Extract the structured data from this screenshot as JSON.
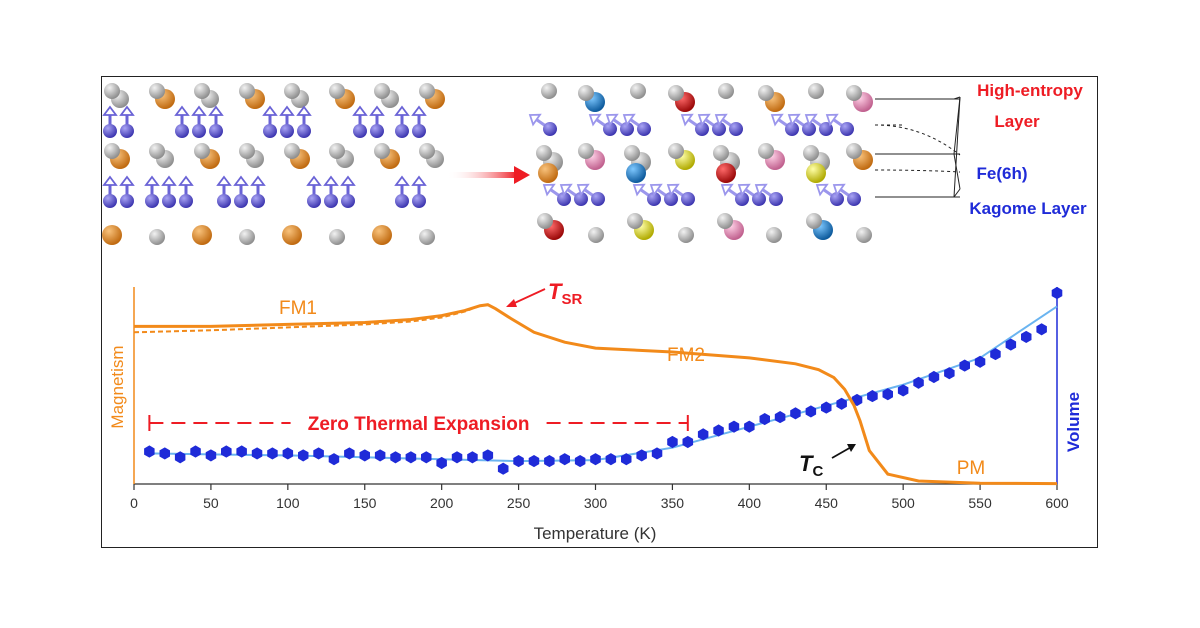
{
  "structure_labels": {
    "high_entropy_line1": "High-entropy",
    "high_entropy_line2": "Layer",
    "fe6h": "Fe(6h)",
    "kagome": "Kagome Layer"
  },
  "colors": {
    "magnetism": "#f28a1a",
    "volume": "#1f2bd8",
    "volume_fit": "#6ab4f0",
    "annotation_red": "#ee1c24",
    "fe_atom": "#6a63d6",
    "a_site_orange": "#e08a2a",
    "grey_atom": "#b8b8b8",
    "atom_red": "#d01a1a",
    "atom_blue": "#1d7fd0",
    "atom_pink": "#e58ab8",
    "atom_yellow": "#e6e01c",
    "label_red": "#ee1c24",
    "label_blue": "#1f2bd8"
  },
  "chart_data": {
    "type": "line",
    "xlabel": "Temperature (K)",
    "ylabel_left": "Magnetism",
    "ylabel_right": "Volume",
    "xlim": [
      0,
      600
    ],
    "xticks": [
      "0",
      "50",
      "100",
      "150",
      "200",
      "250",
      "300",
      "350",
      "400",
      "450",
      "500",
      "550",
      "600"
    ],
    "annotations": {
      "fm1": "FM1",
      "fm2": "FM2",
      "pm": "PM",
      "tsr_main": "T",
      "tsr_sub": "SR",
      "tc_main": "T",
      "tc_sub": "C",
      "zte": "Zero Thermal Expansion"
    },
    "zte_range": [
      10,
      360
    ],
    "series": [
      {
        "key": "magnetism",
        "axis": "left",
        "x": [
          0,
          50,
          100,
          150,
          180,
          200,
          215,
          225,
          230,
          235,
          245,
          260,
          280,
          300,
          350,
          400,
          430,
          445,
          455,
          462,
          468,
          472,
          478,
          490,
          510,
          550,
          600
        ],
        "values": [
          0.8,
          0.8,
          0.81,
          0.82,
          0.835,
          0.855,
          0.88,
          0.905,
          0.91,
          0.89,
          0.84,
          0.77,
          0.72,
          0.69,
          0.67,
          0.64,
          0.61,
          0.58,
          0.54,
          0.48,
          0.4,
          0.32,
          0.17,
          0.05,
          0.015,
          0.004,
          0.002
        ]
      },
      {
        "key": "magnetism_dashed",
        "axis": "left",
        "x": [
          0,
          50,
          100,
          150,
          180,
          200,
          215,
          225,
          230
        ],
        "values": [
          0.77,
          0.78,
          0.795,
          0.81,
          0.825,
          0.845,
          0.875,
          0.905,
          0.91
        ]
      },
      {
        "key": "volume",
        "axis": "right",
        "x": [
          10,
          20,
          30,
          40,
          50,
          60,
          70,
          80,
          90,
          100,
          110,
          120,
          130,
          140,
          150,
          160,
          170,
          180,
          190,
          200,
          210,
          220,
          230,
          240,
          250,
          260,
          270,
          280,
          290,
          300,
          310,
          320,
          330,
          340,
          350,
          360,
          370,
          380,
          390,
          400,
          410,
          420,
          430,
          440,
          450,
          460,
          470,
          480,
          490,
          500,
          510,
          520,
          530,
          540,
          550,
          560,
          570,
          580,
          590,
          600
        ],
        "values": [
          0.17,
          0.16,
          0.14,
          0.17,
          0.15,
          0.17,
          0.17,
          0.16,
          0.16,
          0.16,
          0.15,
          0.16,
          0.13,
          0.16,
          0.15,
          0.15,
          0.14,
          0.14,
          0.14,
          0.11,
          0.14,
          0.14,
          0.15,
          0.08,
          0.12,
          0.12,
          0.12,
          0.13,
          0.12,
          0.13,
          0.13,
          0.13,
          0.15,
          0.16,
          0.22,
          0.22,
          0.26,
          0.28,
          0.3,
          0.3,
          0.34,
          0.35,
          0.37,
          0.38,
          0.4,
          0.42,
          0.44,
          0.46,
          0.47,
          0.49,
          0.53,
          0.56,
          0.58,
          0.62,
          0.64,
          0.68,
          0.73,
          0.77,
          0.81,
          1.0
        ]
      },
      {
        "key": "volume_fit",
        "axis": "right",
        "x": [
          10,
          50,
          100,
          150,
          200,
          250,
          300,
          350,
          400,
          450,
          500,
          550,
          600
        ],
        "values": [
          0.16,
          0.155,
          0.15,
          0.14,
          0.13,
          0.12,
          0.125,
          0.19,
          0.3,
          0.41,
          0.52,
          0.66,
          0.93
        ]
      }
    ]
  }
}
